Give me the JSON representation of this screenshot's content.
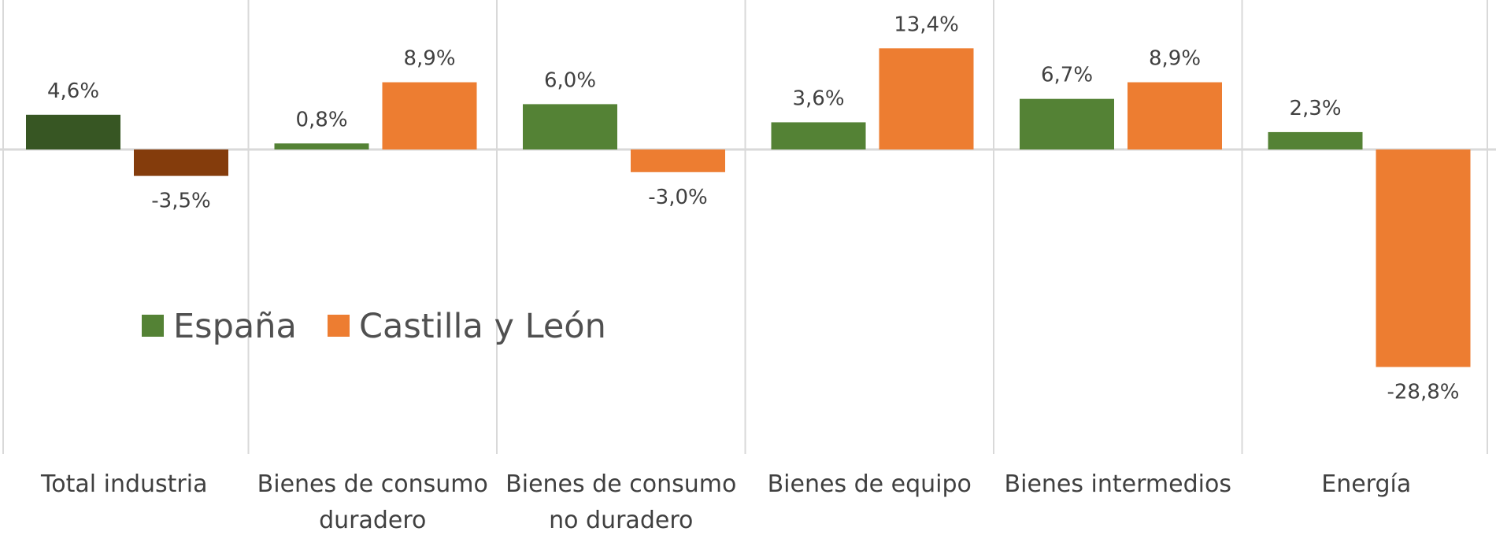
{
  "chart_data": {
    "type": "bar",
    "title": "",
    "xlabel": "",
    "ylabel": "",
    "ylim": [
      -35,
      16
    ],
    "grid": false,
    "legend_position": "middle-left",
    "categories": [
      [
        "Total industria"
      ],
      [
        "Bienes de consumo",
        "duradero"
      ],
      [
        "Bienes de consumo",
        "no duradero"
      ],
      [
        "Bienes de equipo"
      ],
      [
        "Bienes intermedios"
      ],
      [
        "Energía"
      ]
    ],
    "series": [
      {
        "name": "España",
        "color": "#548235",
        "highlight_color": "#375623",
        "values": [
          4.6,
          0.8,
          6.0,
          3.6,
          6.7,
          2.3
        ],
        "labels": [
          "4,6%",
          "0,8%",
          "6,0%",
          "3,6%",
          "6,7%",
          "2,3%"
        ]
      },
      {
        "name": "Castilla y León",
        "color": "#ED7D31",
        "highlight_color": "#843C0C",
        "values": [
          -3.5,
          8.9,
          -3.0,
          13.4,
          8.9,
          -28.8
        ],
        "labels": [
          "-3,5%",
          "8,9%",
          "-3,0%",
          "13,4%",
          "8,9%",
          "-28,8%"
        ]
      }
    ],
    "highlighted_category_index": 0
  }
}
